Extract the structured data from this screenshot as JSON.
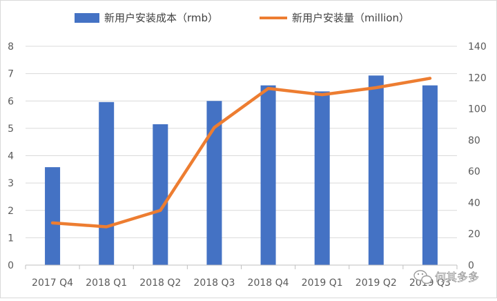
{
  "chart_data": {
    "type": "bar",
    "categories": [
      "2017 Q4",
      "2018 Q1",
      "2018 Q2",
      "2018 Q3",
      "2018 Q4",
      "2019 Q1",
      "2019 Q2",
      "2019 Q3"
    ],
    "series": [
      {
        "name": "新用户安装成本（rmb）",
        "type": "bar",
        "axis": "left",
        "color": "#4472C4",
        "values": [
          3.58,
          5.96,
          5.15,
          6.0,
          6.57,
          6.35,
          6.93,
          6.57
        ]
      },
      {
        "name": "新用户安装量（million）",
        "type": "line",
        "axis": "right",
        "color": "#ED7D31",
        "values": [
          27,
          24.5,
          35,
          88,
          113,
          109,
          113.5,
          119.5
        ]
      }
    ],
    "y_left": {
      "min": 0,
      "max": 8,
      "ticks": [
        0,
        1,
        2,
        3,
        4,
        5,
        6,
        7,
        8
      ]
    },
    "y_right": {
      "min": 0,
      "max": 140,
      "ticks": [
        0,
        20,
        40,
        60,
        80,
        100,
        120,
        140
      ]
    },
    "grid": true,
    "legend_position": "top"
  },
  "watermark": {
    "text": "何其多多"
  }
}
